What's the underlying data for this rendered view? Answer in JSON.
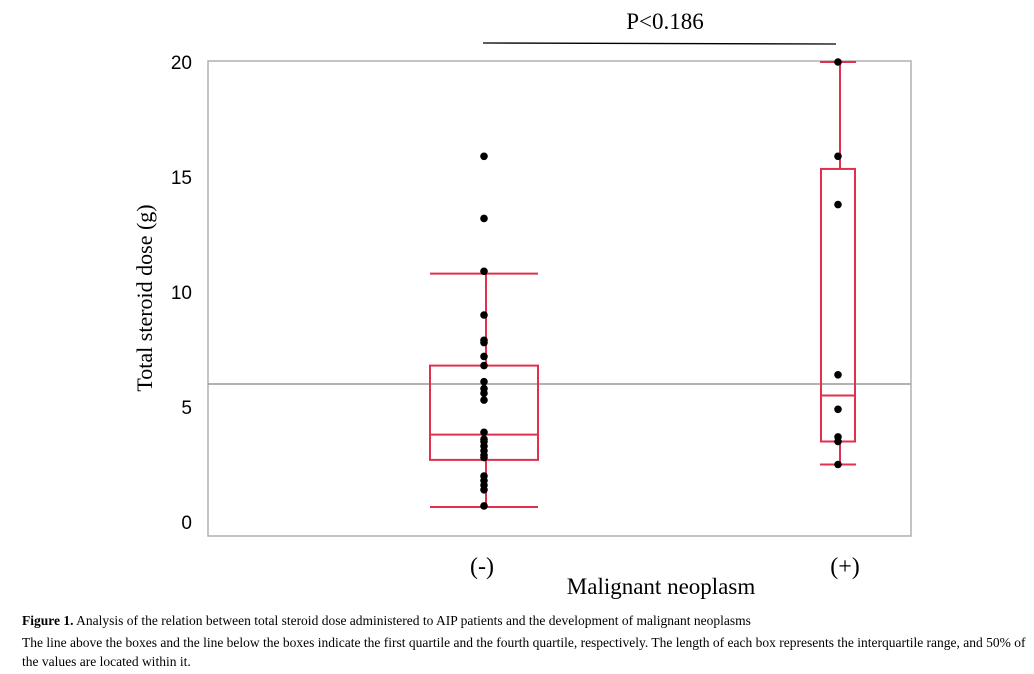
{
  "chart_data": {
    "type": "box",
    "ylabel": "Total steroid dose (g)",
    "xlabel": "Malignant neoplasm",
    "ylim": [
      0,
      20
    ],
    "yticks": [
      0,
      5,
      10,
      15,
      20
    ],
    "ytick_labels": [
      "0",
      "5",
      "10",
      "15",
      "20"
    ],
    "categories": [
      "(-)",
      "(+)"
    ],
    "reference_line": 6.0,
    "significance": {
      "label": "P<0.186",
      "between": [
        "(-)",
        "(+)"
      ]
    },
    "series": [
      {
        "name": "(-)",
        "whisker_low": 0.65,
        "q1": 2.7,
        "median": 3.8,
        "q3": 6.8,
        "whisker_high": 10.8,
        "points": [
          15.9,
          13.2,
          10.9,
          9.0,
          7.9,
          7.8,
          7.2,
          6.8,
          6.1,
          5.8,
          5.6,
          5.3,
          3.9,
          3.6,
          3.5,
          3.3,
          3.1,
          2.9,
          2.8,
          2.0,
          1.8,
          1.6,
          1.4,
          0.7
        ]
      },
      {
        "name": "(+)",
        "whisker_low": 2.5,
        "q1": 3.5,
        "median": 5.5,
        "q3": 15.35,
        "whisker_high": 20.0,
        "points": [
          20.0,
          15.9,
          13.8,
          6.4,
          4.9,
          3.7,
          3.5,
          2.5
        ]
      }
    ],
    "colors": {
      "box": "#e0304e",
      "points": "#000000",
      "frame": "#b0b0b0",
      "reference": "#999999"
    }
  },
  "caption": {
    "figure_label": "Figure 1.",
    "title": " Analysis of the relation between total steroid dose administered to AIP patients and the development of malignant neoplasms",
    "note": "The line above the boxes and the line below the boxes indicate the first quartile and the fourth quartile, respectively. The length of each box represents the interquartile range, and 50% of the values are located within it."
  }
}
